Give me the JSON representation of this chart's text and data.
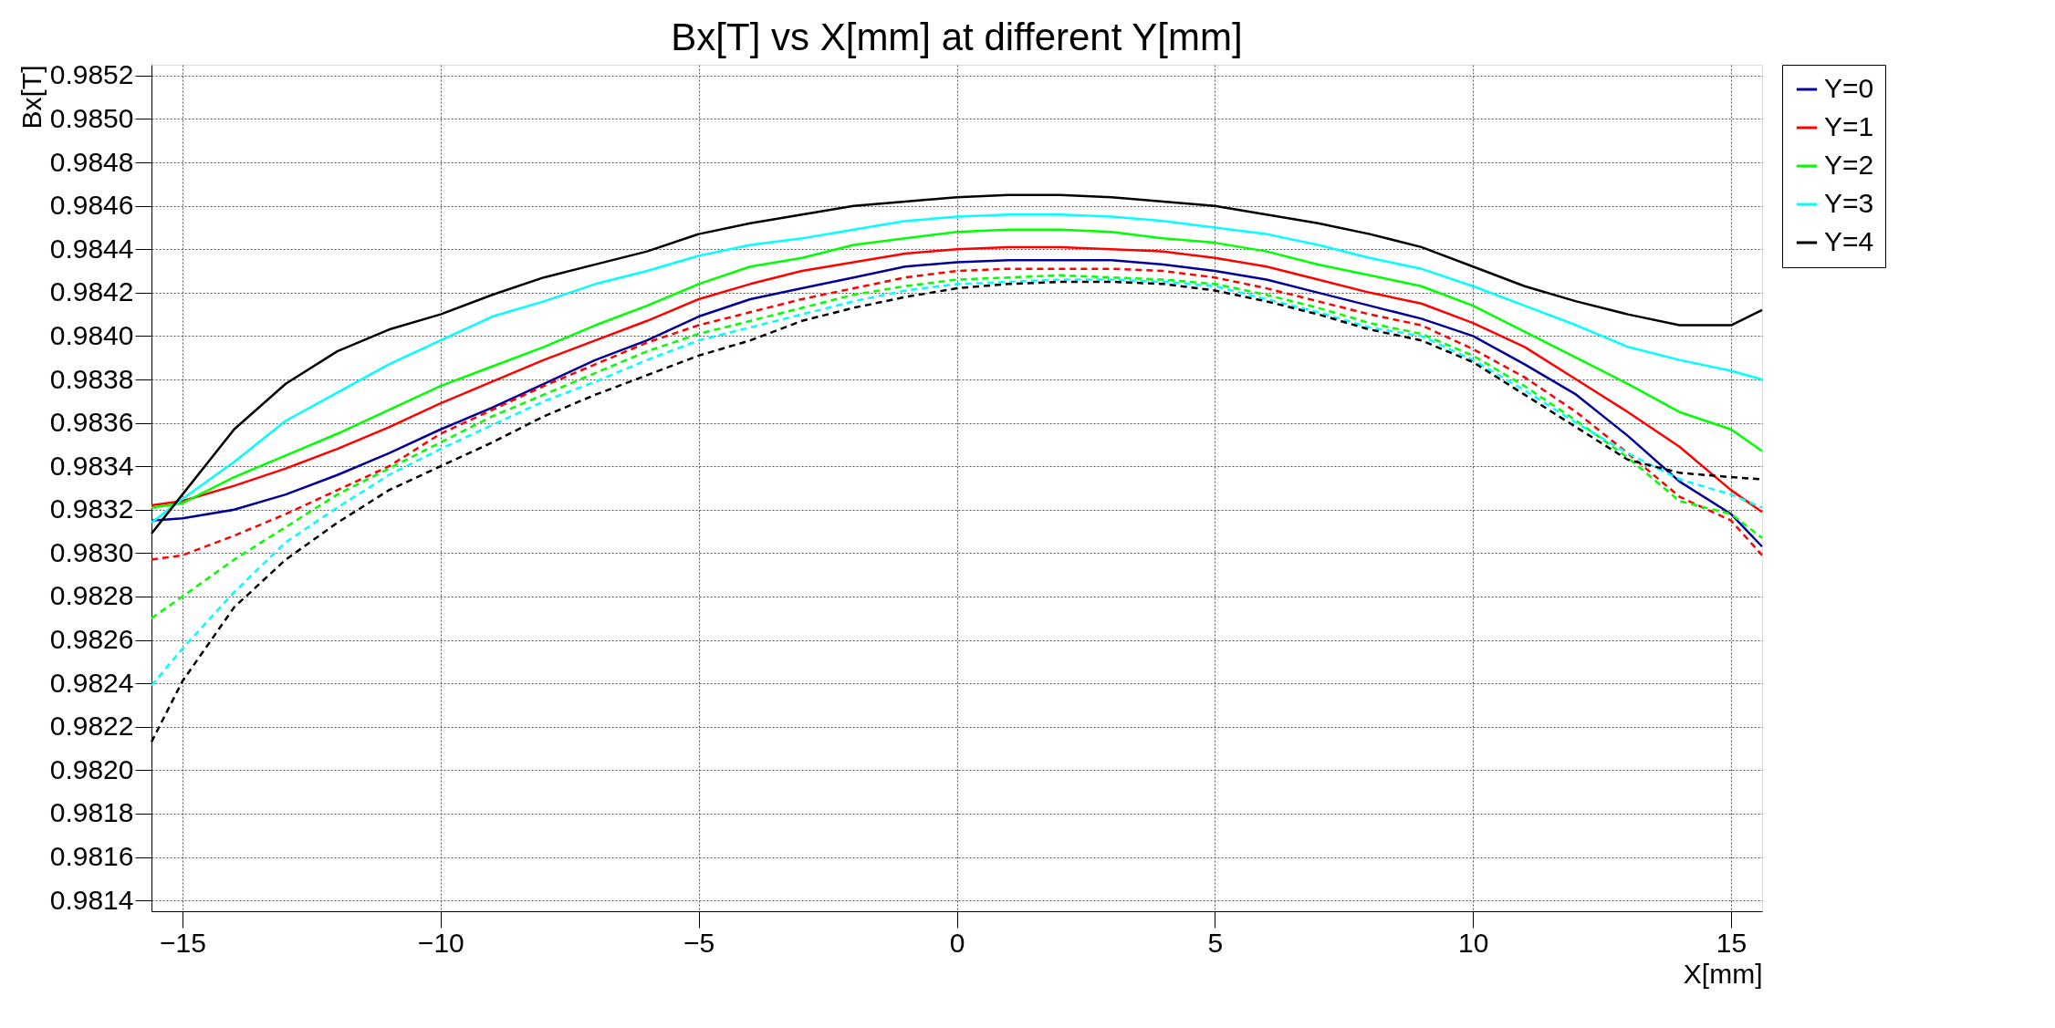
{
  "chart_data": {
    "type": "line",
    "title": "Bx[T] vs X[mm] at different Y[mm]",
    "xlabel": "X[mm]",
    "ylabel": "Bx[T]",
    "x": [
      -15.6,
      -15,
      -14,
      -13,
      -12,
      -11,
      -10,
      -9,
      -8,
      -7,
      -6,
      -5,
      -4,
      -3,
      -2,
      -1,
      0,
      1,
      2,
      3,
      4,
      5,
      6,
      7,
      8,
      9,
      10,
      11,
      12,
      13,
      14,
      15,
      15.6
    ],
    "xlim": [
      -15.6,
      15.6
    ],
    "xticks": [
      -15,
      -10,
      -5,
      0,
      5,
      10,
      15
    ],
    "ylim": [
      0.98135,
      0.98525
    ],
    "yticks": [
      0.9814,
      0.9816,
      0.9818,
      {
        "value": 0.982,
        "label": "0.9820"
      },
      0.9822,
      0.9824,
      0.9826,
      0.9828,
      {
        "value": 0.983,
        "label": "0.9830"
      },
      0.9832,
      0.9834,
      0.9836,
      0.9838,
      {
        "value": 0.984,
        "label": "0.9840"
      },
      0.9842,
      0.9844,
      0.9846,
      0.9848,
      {
        "value": 0.985,
        "label": "0.9850"
      },
      0.9852
    ],
    "grid": true,
    "legend": "top right",
    "marker": "none",
    "series": [
      {
        "name": "Y=0",
        "color": "#000099",
        "line_style": "solid",
        "values": [
          0.98315,
          0.98316,
          0.9832,
          0.98327,
          0.98336,
          0.98346,
          0.98357,
          0.98367,
          0.98378,
          0.98389,
          0.98398,
          0.98409,
          0.98417,
          0.98422,
          0.98427,
          0.98432,
          0.98434,
          0.98435,
          0.98435,
          0.98435,
          0.98433,
          0.9843,
          0.98426,
          0.9842,
          0.98414,
          0.98408,
          0.984,
          0.98387,
          0.98373,
          0.98354,
          0.98333,
          0.98318,
          0.98303
        ]
      },
      {
        "name": "Y=1",
        "color": "#ff0000",
        "line_style": "solid",
        "values": [
          0.98322,
          0.98324,
          0.98331,
          0.98339,
          0.98348,
          0.98358,
          0.98369,
          0.98379,
          0.98389,
          0.98398,
          0.98407,
          0.98417,
          0.98424,
          0.9843,
          0.98434,
          0.98438,
          0.9844,
          0.98441,
          0.98441,
          0.9844,
          0.98439,
          0.98436,
          0.98432,
          0.98426,
          0.9842,
          0.98415,
          0.98406,
          0.98395,
          0.9838,
          0.98365,
          0.98349,
          0.98329,
          0.98319
        ]
      },
      {
        "name": "Y=2",
        "color": "#00ff00",
        "line_style": "solid",
        "values": [
          0.98321,
          0.98323,
          0.98335,
          0.98345,
          0.98355,
          0.98366,
          0.98377,
          0.98386,
          0.98395,
          0.98405,
          0.98414,
          0.98424,
          0.98432,
          0.98436,
          0.98442,
          0.98445,
          0.98448,
          0.98449,
          0.98449,
          0.98448,
          0.98445,
          0.98443,
          0.98439,
          0.98433,
          0.98428,
          0.98423,
          0.98414,
          0.98402,
          0.9839,
          0.98378,
          0.98365,
          0.98357,
          0.98347
        ]
      },
      {
        "name": "Y=3",
        "color": "#00ffff",
        "line_style": "solid",
        "values": [
          0.98314,
          0.98325,
          0.98342,
          0.98361,
          0.98374,
          0.98387,
          0.98398,
          0.98409,
          0.98416,
          0.98424,
          0.9843,
          0.98437,
          0.98442,
          0.98445,
          0.98449,
          0.98453,
          0.98455,
          0.98456,
          0.98456,
          0.98455,
          0.98453,
          0.9845,
          0.98447,
          0.98442,
          0.98436,
          0.98431,
          0.98423,
          0.98414,
          0.98405,
          0.98395,
          0.98389,
          0.98384,
          0.9838
        ]
      },
      {
        "name": "Y=4",
        "color": "#000000",
        "line_style": "solid",
        "values": [
          0.98309,
          0.98327,
          0.98357,
          0.98378,
          0.98393,
          0.98403,
          0.9841,
          0.98419,
          0.98427,
          0.98433,
          0.98439,
          0.98447,
          0.98452,
          0.98456,
          0.9846,
          0.98462,
          0.98464,
          0.98465,
          0.98465,
          0.98464,
          0.98462,
          0.9846,
          0.98456,
          0.98452,
          0.98447,
          0.98441,
          0.98432,
          0.98423,
          0.98416,
          0.9841,
          0.98405,
          0.98405,
          0.98412
        ]
      },
      {
        "color": "#ff0000",
        "line_style": "dashed",
        "values": [
          0.98297,
          0.98299,
          0.98308,
          0.98318,
          0.98329,
          0.9834,
          0.98355,
          0.98366,
          0.98377,
          0.98387,
          0.98397,
          0.98405,
          0.98411,
          0.98417,
          0.98422,
          0.98427,
          0.9843,
          0.98431,
          0.98431,
          0.98431,
          0.9843,
          0.98427,
          0.98422,
          0.98416,
          0.9841,
          0.98405,
          0.98394,
          0.98381,
          0.98365,
          0.98346,
          0.98326,
          0.98315,
          0.98299
        ]
      },
      {
        "color": "#00ff00",
        "line_style": "dashed",
        "values": [
          0.9827,
          0.9828,
          0.98297,
          0.98312,
          0.98327,
          0.98339,
          0.98351,
          0.98363,
          0.98373,
          0.98383,
          0.98393,
          0.98401,
          0.98407,
          0.98413,
          0.98419,
          0.98423,
          0.98426,
          0.98427,
          0.98428,
          0.98427,
          0.98426,
          0.98424,
          0.98419,
          0.98413,
          0.98406,
          0.98401,
          0.98391,
          0.98377,
          0.98361,
          0.98344,
          0.98324,
          0.98318,
          0.98307
        ]
      },
      {
        "color": "#00ffff",
        "line_style": "dashed",
        "values": [
          0.98239,
          0.98256,
          0.98282,
          0.98305,
          0.98321,
          0.98336,
          0.98348,
          0.98359,
          0.9837,
          0.98379,
          0.98389,
          0.98398,
          0.98404,
          0.9841,
          0.98416,
          0.98421,
          0.98424,
          0.98425,
          0.98426,
          0.98426,
          0.98425,
          0.98423,
          0.98417,
          0.98411,
          0.98404,
          0.984,
          0.98389,
          0.98375,
          0.9836,
          0.98346,
          0.98334,
          0.98327,
          0.98321
        ]
      },
      {
        "color": "#000000",
        "line_style": "dashed",
        "values": [
          0.98213,
          0.98241,
          0.98275,
          0.98297,
          0.98314,
          0.98329,
          0.9834,
          0.98351,
          0.98363,
          0.98373,
          0.98382,
          0.98391,
          0.98398,
          0.98407,
          0.98413,
          0.98418,
          0.98422,
          0.98424,
          0.98425,
          0.98425,
          0.98424,
          0.98421,
          0.98416,
          0.9841,
          0.98403,
          0.98398,
          0.98388,
          0.98373,
          0.98358,
          0.98343,
          0.98337,
          0.98335,
          0.98334
        ]
      }
    ]
  }
}
